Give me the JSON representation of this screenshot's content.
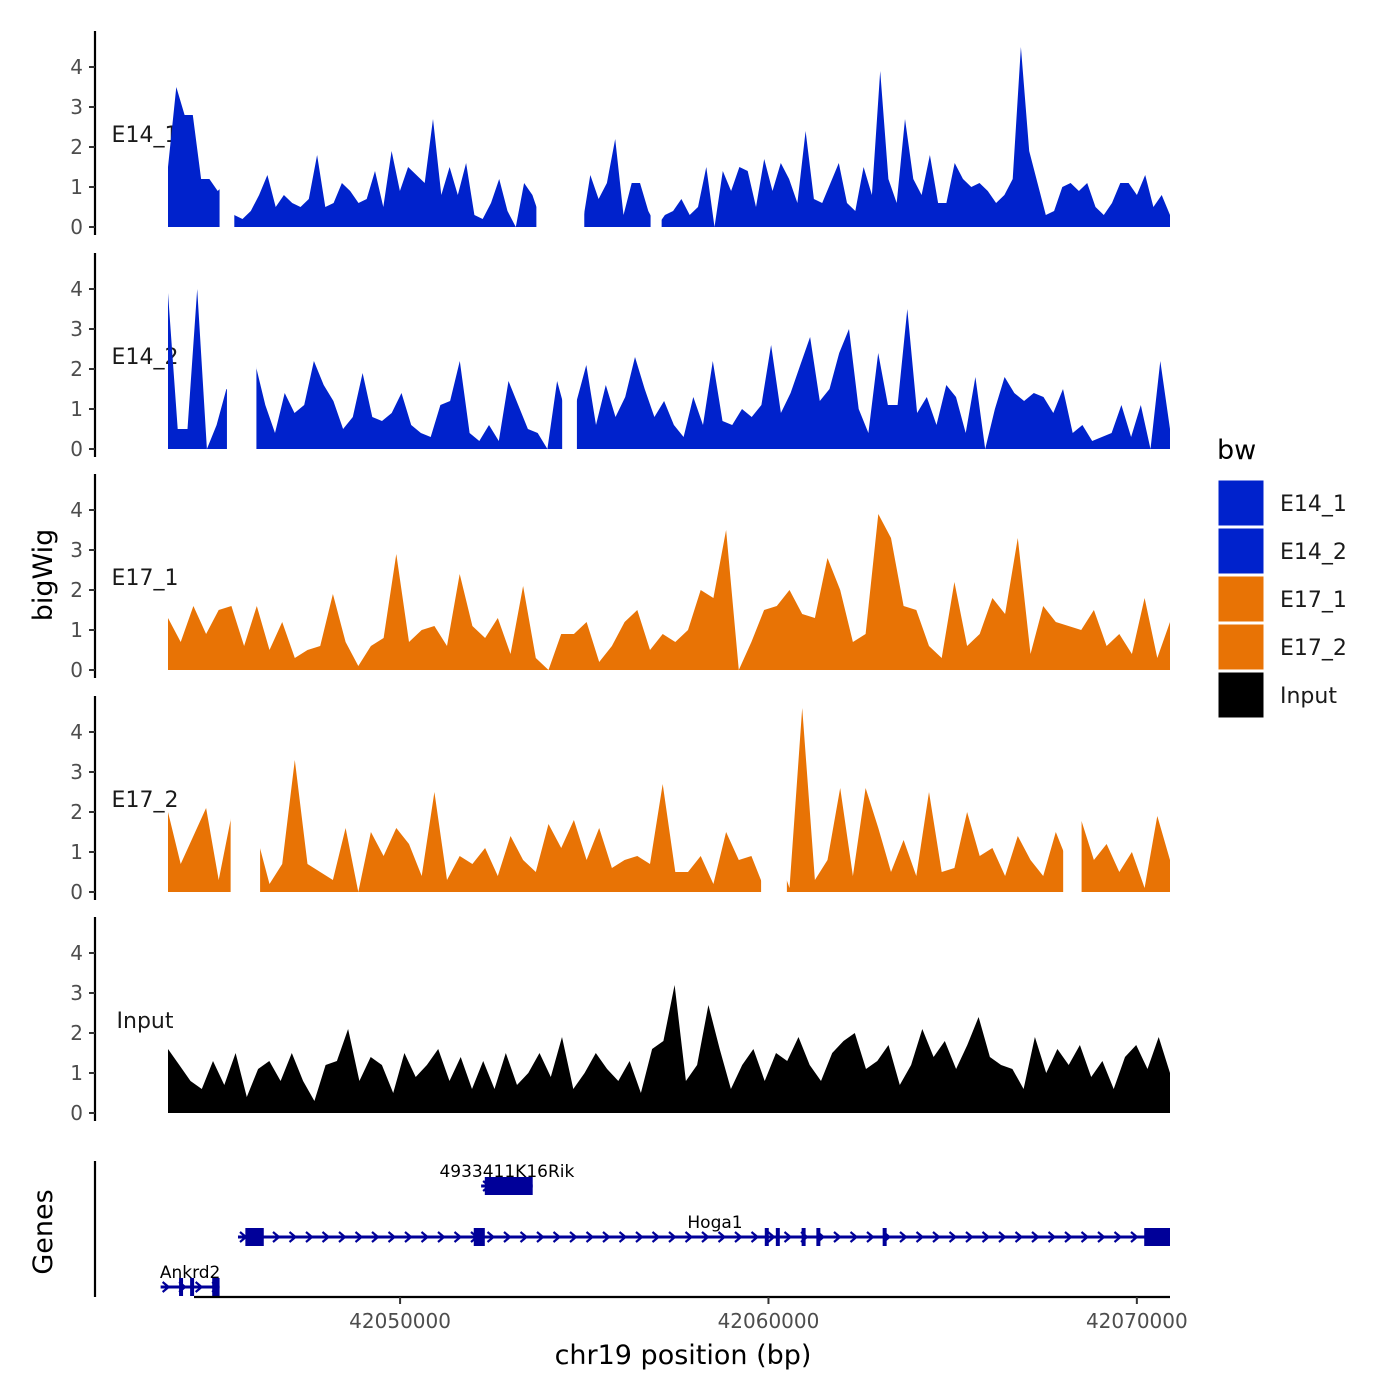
{
  "chart_data": {
    "type": "area",
    "chromosome": "chr19",
    "xlabel": "chr19 position (bp)",
    "ylabel": "bigWig",
    "gene_axis_label": "Genes",
    "x_range": [
      42043700,
      42070900
    ],
    "x_ticks": [
      {
        "value": 42050000,
        "label": "42050000"
      },
      {
        "value": 42060000,
        "label": "42060000"
      },
      {
        "value": 42070000,
        "label": "42070000"
      }
    ],
    "y_range": [
      0,
      4.7
    ],
    "y_ticks": [
      {
        "value": 0,
        "label": "0"
      },
      {
        "value": 1,
        "label": "1"
      },
      {
        "value": 2,
        "label": "2"
      },
      {
        "value": 3,
        "label": "3"
      },
      {
        "value": 4,
        "label": "4"
      }
    ],
    "legend": {
      "title": "bw",
      "entries": [
        {
          "name": "E14_1",
          "color": "#0022CC"
        },
        {
          "name": "E14_2",
          "color": "#0022CC"
        },
        {
          "name": "E17_1",
          "color": "#E87305"
        },
        {
          "name": "E17_2",
          "color": "#E87305"
        },
        {
          "name": "Input",
          "color": "#000000"
        }
      ]
    },
    "series": [
      {
        "name": "E14_1",
        "color": "#0022CC",
        "x_start": 42043700,
        "x_end": 42070900,
        "values": [
          1.5,
          3.5,
          2.8,
          2.8,
          1.2,
          1.2,
          0.9,
          1.1,
          0.3,
          0.2,
          0.4,
          0.8,
          1.3,
          0.5,
          0.8,
          0.6,
          0.5,
          0.7,
          1.8,
          0.5,
          0.6,
          1.1,
          0.9,
          0.6,
          0.7,
          1.4,
          0.5,
          1.9,
          0.9,
          1.5,
          1.3,
          1.1,
          2.7,
          0.8,
          1.5,
          0.8,
          1.6,
          0.3,
          0.2,
          0.6,
          1.2,
          0.4,
          0.0,
          1.1,
          0.8,
          0.2,
          0.3,
          0.4,
          1.1,
          0.5,
          0.0,
          1.3,
          0.7,
          1.1,
          2.2,
          0.3,
          1.1,
          1.1,
          0.4,
          0.0,
          0.3,
          0.4,
          0.7,
          0.3,
          0.5,
          1.5,
          0.0,
          1.4,
          0.9,
          1.5,
          1.4,
          0.5,
          1.7,
          0.9,
          1.6,
          1.2,
          0.6,
          2.4,
          0.7,
          0.6,
          1.1,
          1.6,
          0.6,
          0.4,
          1.5,
          0.8,
          3.9,
          1.2,
          0.6,
          2.7,
          1.2,
          0.8,
          1.8,
          0.6,
          0.6,
          1.6,
          1.2,
          1.0,
          1.1,
          0.9,
          0.6,
          0.8,
          1.2,
          4.5,
          1.9,
          1.1,
          0.3,
          0.4,
          1.0,
          1.1,
          0.9,
          1.1,
          0.5,
          0.3,
          0.6,
          1.1,
          1.1,
          0.8,
          1.3,
          0.5,
          0.8,
          0.3
        ],
        "gaps": [
          [
            42045100,
            42045500
          ],
          [
            42053700,
            42055000
          ],
          [
            42056800,
            42057100
          ]
        ]
      },
      {
        "name": "E14_2",
        "color": "#0022CC",
        "x_start": 42043700,
        "x_end": 42070900,
        "values": [
          3.9,
          0.5,
          0.5,
          4.0,
          0.0,
          0.6,
          1.5,
          1.4,
          1.1,
          2.1,
          1.1,
          0.4,
          1.4,
          0.9,
          1.1,
          2.2,
          1.6,
          1.2,
          0.5,
          0.8,
          1.9,
          0.8,
          0.7,
          0.9,
          1.4,
          0.6,
          0.4,
          0.3,
          1.1,
          1.2,
          2.2,
          0.4,
          0.2,
          0.6,
          0.2,
          1.7,
          1.1,
          0.5,
          0.4,
          0.0,
          1.7,
          0.8,
          1.2,
          2.1,
          0.6,
          1.6,
          0.8,
          1.3,
          2.3,
          1.5,
          0.8,
          1.2,
          0.6,
          0.3,
          1.3,
          0.6,
          2.2,
          0.7,
          0.6,
          1.0,
          0.8,
          1.1,
          2.6,
          0.9,
          1.4,
          2.1,
          2.8,
          1.2,
          1.5,
          2.4,
          3.0,
          1.0,
          0.4,
          2.4,
          1.1,
          1.1,
          3.5,
          0.9,
          1.3,
          0.6,
          1.6,
          1.3,
          0.4,
          1.8,
          0.0,
          1.0,
          1.8,
          1.4,
          1.2,
          1.4,
          1.3,
          0.9,
          1.5,
          0.4,
          0.6,
          0.2,
          0.3,
          0.4,
          1.1,
          0.3,
          1.1,
          0.0,
          2.2,
          0.5
        ],
        "gaps": [
          [
            42045300,
            42046100
          ],
          [
            42054400,
            42054800
          ]
        ]
      },
      {
        "name": "E17_1",
        "color": "#E87305",
        "x_start": 42043700,
        "x_end": 42070900,
        "values": [
          1.3,
          0.7,
          1.6,
          0.9,
          1.5,
          1.6,
          0.6,
          1.6,
          0.5,
          1.2,
          0.3,
          0.5,
          0.6,
          1.9,
          0.7,
          0.1,
          0.6,
          0.8,
          2.9,
          0.7,
          1.0,
          1.1,
          0.6,
          2.4,
          1.1,
          0.8,
          1.3,
          0.4,
          2.1,
          0.3,
          0.0,
          0.9,
          0.9,
          1.2,
          0.2,
          0.6,
          1.2,
          1.5,
          0.5,
          0.9,
          0.7,
          1.0,
          2.0,
          1.8,
          3.5,
          0.0,
          0.7,
          1.5,
          1.6,
          2.0,
          1.4,
          1.3,
          2.8,
          2.0,
          0.7,
          0.9,
          3.9,
          3.3,
          1.6,
          1.5,
          0.6,
          0.3,
          2.2,
          0.6,
          0.9,
          1.8,
          1.4,
          3.3,
          0.4,
          1.6,
          1.2,
          1.1,
          1.0,
          1.5,
          0.6,
          0.9,
          0.4,
          1.8,
          0.3,
          1.2
        ],
        "gaps": []
      },
      {
        "name": "E17_2",
        "color": "#E87305",
        "x_start": 42043700,
        "x_end": 42070900,
        "values": [
          2.0,
          0.7,
          1.4,
          2.1,
          0.3,
          1.9,
          0.4,
          1.4,
          0.2,
          0.7,
          3.3,
          0.7,
          0.5,
          0.3,
          1.6,
          0.0,
          1.5,
          0.9,
          1.6,
          1.2,
          0.4,
          2.5,
          0.3,
          0.9,
          0.7,
          1.1,
          0.4,
          1.4,
          0.8,
          0.5,
          1.7,
          1.1,
          1.8,
          0.8,
          1.6,
          0.6,
          0.8,
          0.9,
          0.7,
          2.7,
          0.5,
          0.5,
          0.9,
          0.2,
          1.5,
          0.8,
          0.9,
          0.1,
          1.0,
          0.1,
          4.6,
          0.3,
          0.8,
          2.6,
          0.4,
          2.6,
          1.6,
          0.5,
          1.3,
          0.4,
          2.5,
          0.5,
          0.6,
          2.0,
          0.9,
          1.1,
          0.4,
          1.4,
          0.8,
          0.4,
          1.5,
          0.7,
          1.8,
          0.8,
          1.2,
          0.5,
          1.0,
          0.1,
          1.9,
          0.8
        ],
        "gaps": [
          [
            42045400,
            42046200
          ],
          [
            42059800,
            42060500
          ],
          [
            42068000,
            42068500
          ]
        ]
      },
      {
        "name": "Input",
        "color": "#000000",
        "x_start": 42043700,
        "x_end": 42070900,
        "values": [
          1.6,
          1.2,
          0.8,
          0.6,
          1.3,
          0.7,
          1.5,
          0.4,
          1.1,
          1.3,
          0.8,
          1.5,
          0.8,
          0.3,
          1.2,
          1.3,
          2.1,
          0.8,
          1.4,
          1.2,
          0.5,
          1.5,
          0.9,
          1.2,
          1.6,
          0.8,
          1.4,
          0.6,
          1.3,
          0.6,
          1.5,
          0.7,
          1.0,
          1.5,
          0.9,
          1.9,
          0.6,
          1.0,
          1.5,
          1.1,
          0.8,
          1.3,
          0.5,
          1.6,
          1.8,
          3.2,
          0.8,
          1.2,
          2.7,
          1.6,
          0.6,
          1.2,
          1.6,
          0.8,
          1.5,
          1.3,
          1.9,
          1.2,
          0.8,
          1.5,
          1.8,
          2.0,
          1.1,
          1.3,
          1.7,
          0.7,
          1.2,
          2.1,
          1.4,
          1.8,
          1.1,
          1.7,
          2.4,
          1.4,
          1.2,
          1.1,
          0.6,
          1.9,
          1.0,
          1.6,
          1.2,
          1.7,
          0.9,
          1.3,
          0.6,
          1.4,
          1.7,
          1.1,
          1.9,
          1.0
        ],
        "gaps": []
      }
    ],
    "genes": [
      {
        "name": "4933411K16Rik",
        "strand": "+",
        "row": 1,
        "start": 42052200,
        "end": 42053600,
        "exons": [
          [
            42052300,
            42053600
          ]
        ]
      },
      {
        "name": "Hoga1",
        "strand": "+",
        "row": 2,
        "start": 42045600,
        "end": 42070900,
        "exons": [
          [
            42045800,
            42046300
          ],
          [
            42052000,
            42052300
          ],
          [
            42059900,
            42060000
          ],
          [
            42060200,
            42060300
          ],
          [
            42060900,
            42061000
          ],
          [
            42061300,
            42061400
          ],
          [
            42063100,
            42063200
          ],
          [
            42070200,
            42070900
          ]
        ]
      },
      {
        "name": "Ankrd2",
        "strand": "+",
        "row": 3,
        "start": 42043500,
        "end": 42045100,
        "exons": [
          [
            42044000,
            42044100
          ],
          [
            42044300,
            42044400
          ],
          [
            42044900,
            42045100
          ]
        ]
      }
    ]
  }
}
